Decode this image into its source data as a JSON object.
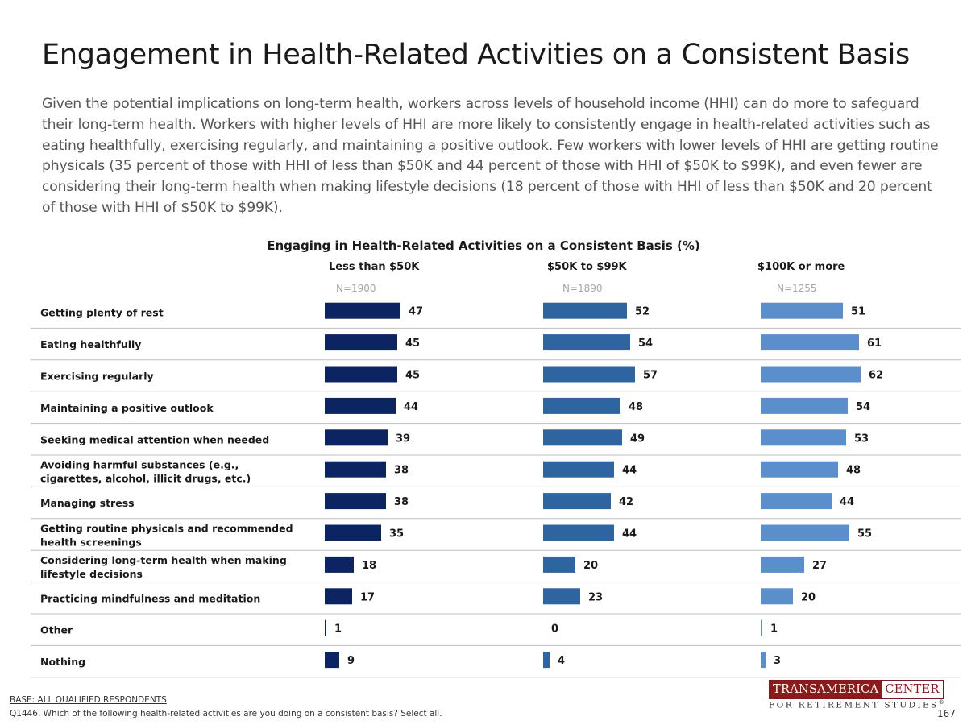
{
  "title": "Engagement in Health-Related Activities on a Consistent Basis",
  "intro": "Given the potential implications on long-term health, workers across levels of household income (HHI) can do more to safeguard their long-term health. Workers with higher levels of HHI are more likely to consistently engage in health-related activities such as eating healthfully, exercising regularly, and maintaining a positive outlook. Few workers with lower levels of HHI are getting routine physicals (35 percent of those with HHI of less than $50K and 44 percent of those with HHI of $50K to $99K), and even fewer are considering their long-term health when making lifestyle decisions (18 percent of those with HHI of less than $50K and 20 percent of those with HHI of $50K to $99K).",
  "chart_data": {
    "type": "bar",
    "orientation": "horizontal",
    "title": "Engaging in Health-Related Activities on a Consistent Basis (%)",
    "categories": [
      "Getting plenty of rest",
      "Eating healthfully",
      "Exercising regularly",
      "Maintaining a positive outlook",
      "Seeking medical attention when needed",
      "Avoiding harmful substances (e.g., cigarettes, alcohol, illicit drugs, etc.)",
      "Managing stress",
      "Getting routine physicals and recommended health screenings",
      "Considering long-term health when making lifestyle decisions",
      "Practicing mindfulness and meditation",
      "Other",
      "Nothing"
    ],
    "series": [
      {
        "name": "Less than $50K",
        "n": "N=1900",
        "color": "#0c2461",
        "values": [
          47,
          45,
          45,
          44,
          39,
          38,
          38,
          35,
          18,
          17,
          1,
          9
        ]
      },
      {
        "name": "$50K to $99K",
        "n": "N=1890",
        "color": "#2e64a0",
        "values": [
          52,
          54,
          57,
          48,
          49,
          44,
          42,
          44,
          20,
          23,
          0,
          4
        ]
      },
      {
        "name": "$100K or more",
        "n": "N=1255",
        "color": "#5b8fcc",
        "values": [
          51,
          61,
          62,
          54,
          53,
          48,
          44,
          55,
          27,
          20,
          1,
          3
        ]
      }
    ],
    "xlim": [
      0,
      100
    ],
    "grid": false,
    "legend": "none"
  },
  "footer": {
    "base": "BASE: ALL QUALIFIED RESPONDENTS",
    "question": "Q1446. Which of the following health-related activities are you doing on a consistent basis? Select all."
  },
  "logo": {
    "word1": "TRANSAMERICA",
    "word2": "CENTER",
    "subtitle": "FOR RETIREMENT STUDIES",
    "registered": "®"
  },
  "page_number": "167"
}
